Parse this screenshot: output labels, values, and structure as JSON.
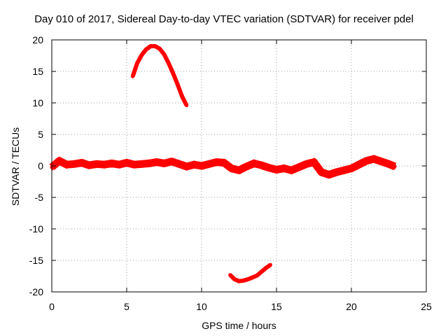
{
  "chart_data": {
    "type": "line",
    "title": "Day 010 of 2017, Sidereal Day-to-day VTEC variation (SDTVAR) for receiver pdel",
    "xlabel": "GPS time / hours",
    "ylabel": "SDTVAR / TECUs",
    "xlim": [
      0,
      25
    ],
    "ylim": [
      -20,
      20
    ],
    "xticks": [
      0,
      5,
      10,
      15,
      20,
      25
    ],
    "yticks": [
      -20,
      -15,
      -10,
      -5,
      0,
      5,
      10,
      15,
      20
    ],
    "grid": true,
    "series": [
      {
        "name": "baseline band",
        "color": "#ff0000",
        "x": [
          0.0,
          0.5,
          1.0,
          1.5,
          2.0,
          2.5,
          3.0,
          3.5,
          4.0,
          4.5,
          5.0,
          5.5,
          6.0,
          6.5,
          7.0,
          7.5,
          8.0,
          8.5,
          9.0,
          9.5,
          10.0,
          10.5,
          11.0,
          11.5,
          12.0,
          12.5,
          13.0,
          13.5,
          14.0,
          14.5,
          15.0,
          15.5,
          16.0,
          16.5,
          17.0,
          17.5,
          18.0,
          18.5,
          19.0,
          19.5,
          20.0,
          20.5,
          21.0,
          21.5,
          22.0,
          22.5,
          22.9
        ],
        "values": [
          -0.2,
          0.8,
          0.2,
          0.3,
          0.5,
          0.1,
          0.3,
          0.2,
          0.4,
          0.2,
          0.5,
          0.2,
          0.3,
          0.4,
          0.6,
          0.4,
          0.7,
          0.3,
          -0.1,
          0.2,
          0.0,
          0.3,
          0.6,
          0.5,
          -0.4,
          -0.7,
          -0.1,
          0.4,
          0.1,
          -0.3,
          -0.6,
          -0.4,
          -0.7,
          -0.2,
          0.3,
          0.6,
          -1.0,
          -1.4,
          -1.0,
          -0.7,
          -0.4,
          0.2,
          0.8,
          1.1,
          0.7,
          0.3,
          -0.1
        ]
      },
      {
        "name": "positive arc",
        "color": "#ff0000",
        "x": [
          5.4,
          5.7,
          6.0,
          6.3,
          6.6,
          6.9,
          7.2,
          7.5,
          7.8,
          8.1,
          8.4,
          8.7,
          9.0
        ],
        "values": [
          14.2,
          16.3,
          17.6,
          18.5,
          19.0,
          19.0,
          18.6,
          17.7,
          16.3,
          14.7,
          12.9,
          11.0,
          9.6
        ]
      },
      {
        "name": "negative arc",
        "color": "#ff0000",
        "x": [
          11.9,
          12.2,
          12.5,
          12.8,
          13.1,
          13.4,
          13.7,
          14.0,
          14.3,
          14.6
        ],
        "values": [
          -17.3,
          -18.0,
          -18.3,
          -18.2,
          -18.0,
          -17.7,
          -17.4,
          -16.8,
          -16.2,
          -15.7
        ]
      }
    ]
  }
}
